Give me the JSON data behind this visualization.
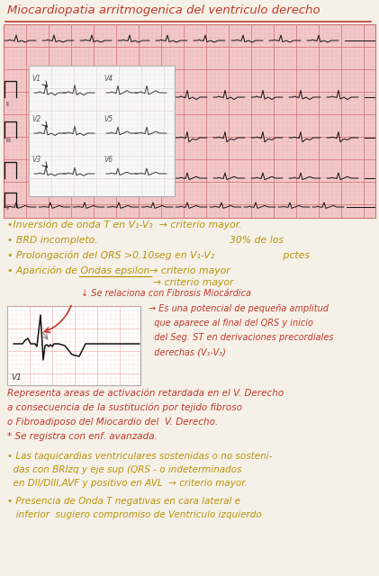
{
  "bg_color": "#f5f0e8",
  "title": "Miocardiopatia arritmogenica del ventriculo derecho",
  "title_color": "#c0392b",
  "title_fontsize": 9.5,
  "grid_color_minor": "#e8b0b0",
  "grid_color_major": "#d07070",
  "ecg_bg": "#f2c8c8",
  "annotation_color_red": "#c0392b",
  "annotation_color_yellow": "#b8940a",
  "bullet1": "•Inversión de onda T en V₁-V₃  → criterio mayor.",
  "bullet2": "• BRD incompleto.",
  "bullet3": "• Prolongación del QRS >0.10seg en V₁-V₂",
  "bullet4": "• Aparición de Ondas epsilon→ criterio mayor",
  "side_note_line1": "30% de los",
  "side_note_line2": "       pctes",
  "arrow_sub": "↓ Se relaciona con Fibrosis Miocárdica",
  "eps_line1": "→ Es una potencial de pequeña amplitud",
  "eps_line2": "  que aparece al final del QRS y inicio",
  "eps_line3": "  del Seg. ST en derivaciones precordiales",
  "eps_line4": "  derechas (V₁-V₃)",
  "para1": "Representa areas de activación retardada en el V. Derecho",
  "para2": "a consecuencia de la sustitución por tejido fibroso",
  "para3": "o Fibroadiposo del Miocardio del  V. Derecho.",
  "para4": "* Se registra con enf. avanzada.",
  "bp1_line1": "• Las taquicardias ventriculares sostenidas o no sosteni-",
  "bp1_line2": "  das con BRIzq y eje sup (QRS - o indeterminados",
  "bp1_line3": "  en DII/DIII,AVF y positivo en AVL  → criterio mayor.",
  "bp2_line1": "• Presencia de Onda T negativas en cara lateral e",
  "bp2_line2": "   inferior  sugiero compromiso de Ventriculo izquierdo"
}
